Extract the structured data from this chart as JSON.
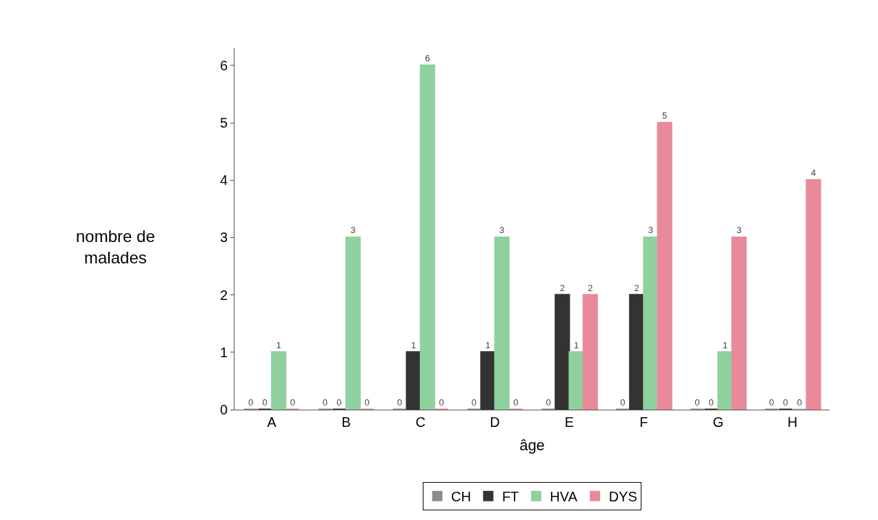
{
  "chart_data": {
    "type": "bar",
    "xlabel": "âge",
    "ylabel": "nombre de malades",
    "categories": [
      "A",
      "B",
      "C",
      "D",
      "E",
      "F",
      "G",
      "H"
    ],
    "series": [
      {
        "name": "CH",
        "color": "#8c8c8c",
        "values": [
          0,
          0,
          0,
          0,
          0,
          0,
          0,
          0
        ]
      },
      {
        "name": "FT",
        "color": "#333333",
        "values": [
          0,
          0,
          1,
          1,
          2,
          2,
          0,
          0
        ]
      },
      {
        "name": "HVA",
        "color": "#8fd19e",
        "values": [
          1,
          3,
          6,
          3,
          1,
          3,
          1,
          0
        ]
      },
      {
        "name": "DYS",
        "color": "#e88a9a",
        "values": [
          0,
          0,
          0,
          0,
          2,
          5,
          3,
          4
        ]
      }
    ],
    "ylim": [
      0,
      6.3
    ],
    "yticks": [
      0,
      1,
      2,
      3,
      4,
      5,
      6
    ],
    "legend": "bottom",
    "data_labels": true
  }
}
